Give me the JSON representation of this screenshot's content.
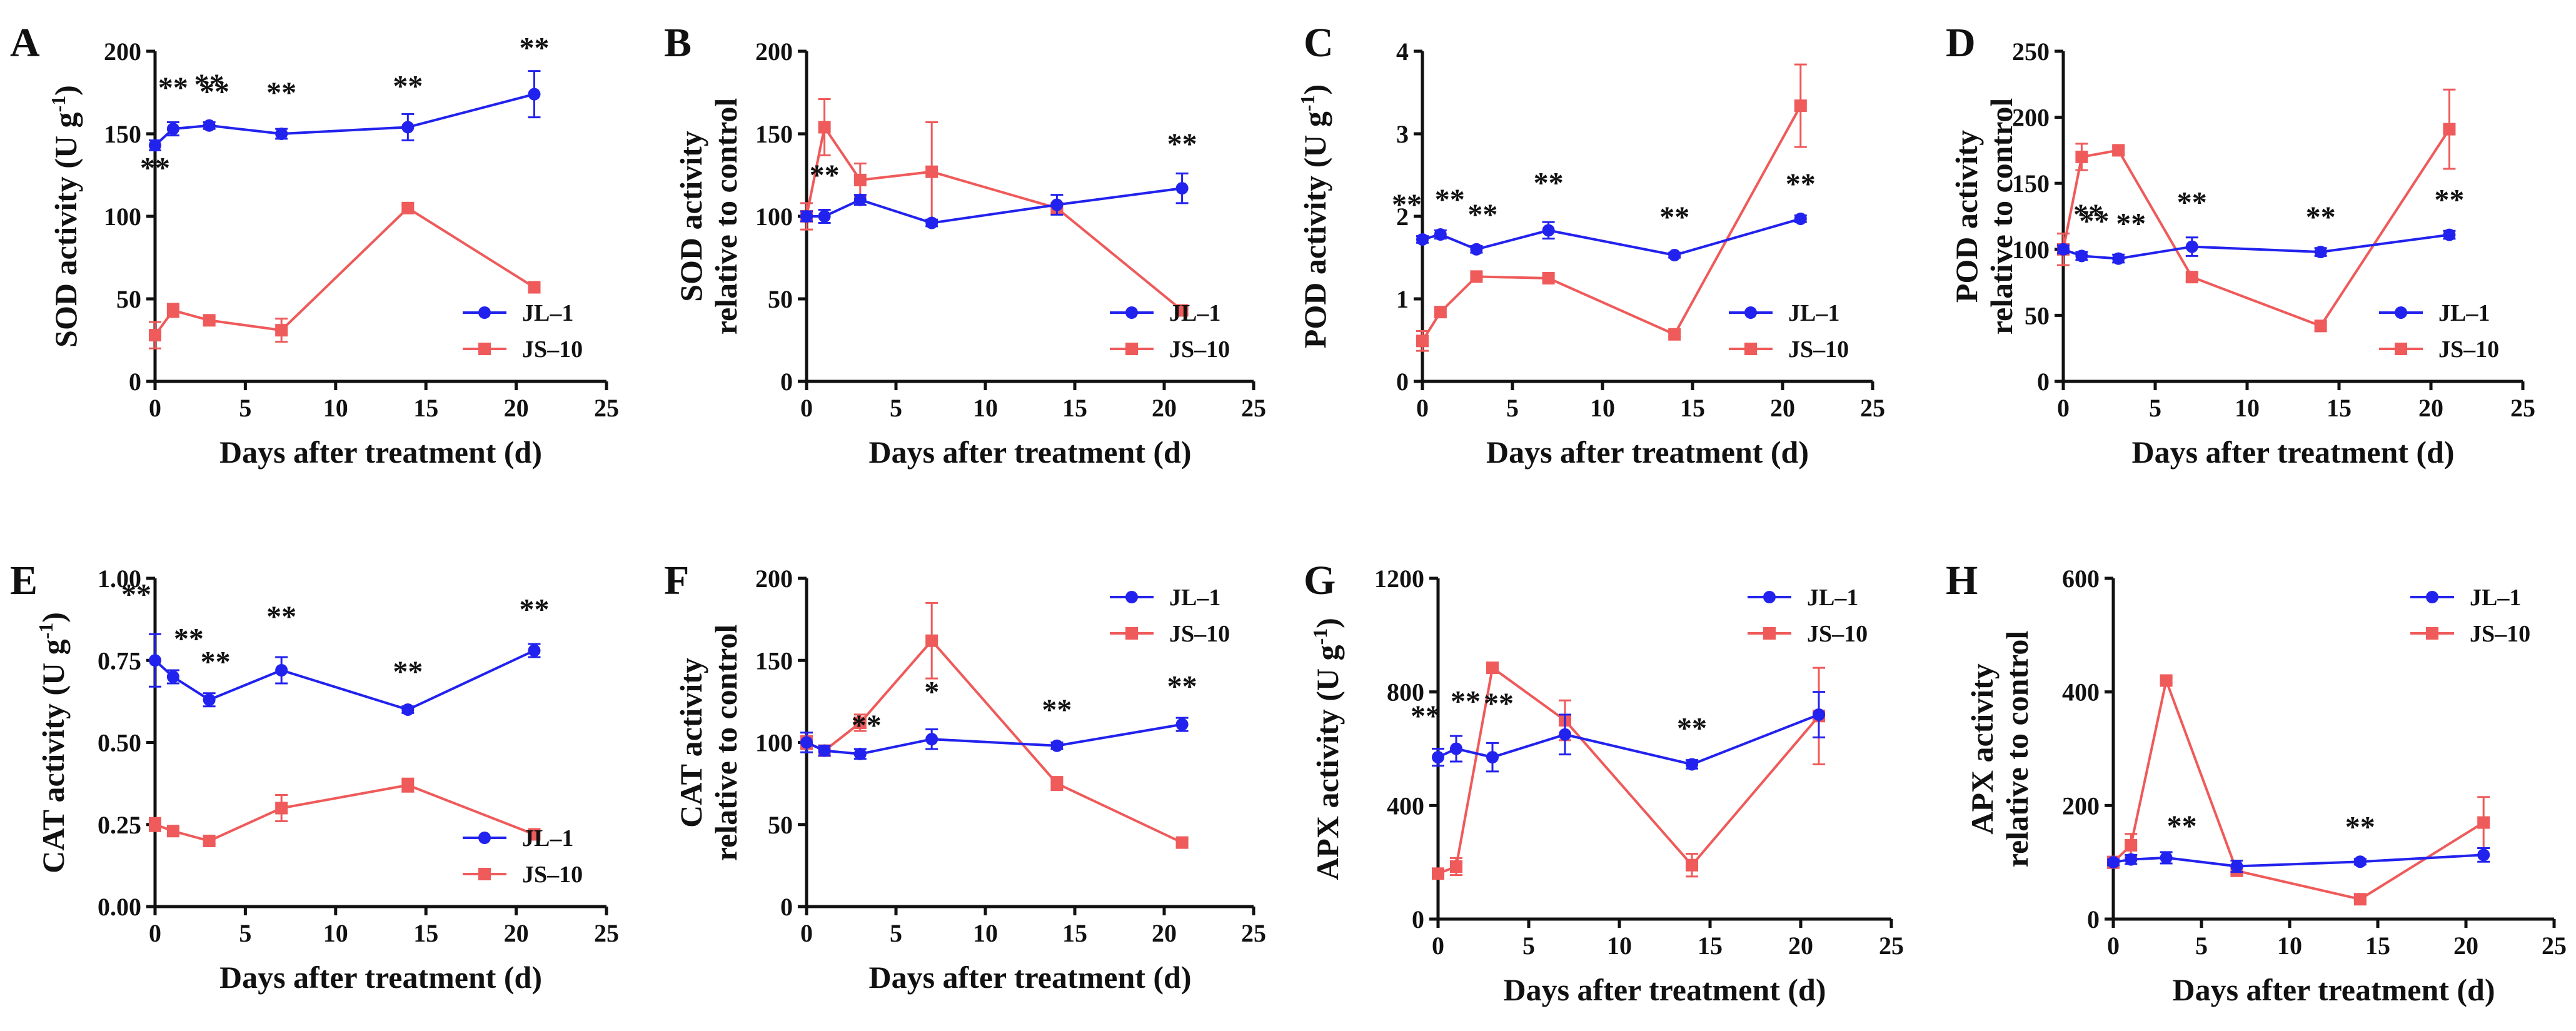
{
  "figure": {
    "series_names": [
      "JL–1",
      "JS–10"
    ],
    "colors": {
      "JL-1": "#2222ee",
      "JS-10": "#ef5a5a",
      "axis": "#111111"
    }
  },
  "chart_data": [
    {
      "panel": "A",
      "type": "line",
      "xlabel": "Days after treatment (d)",
      "ylabel": "SOD activity (U g⁻¹)",
      "xlim": [
        0,
        25
      ],
      "ylim": [
        0,
        200
      ],
      "xticks": [
        0,
        5,
        10,
        15,
        20,
        25
      ],
      "yticks": [
        0,
        50,
        100,
        150,
        200
      ],
      "xtick_labels": [
        "0",
        "5",
        "10",
        "15",
        "20",
        "25"
      ],
      "ytick_labels": [
        "0",
        "50",
        "100",
        "150",
        "200"
      ],
      "legend_position": "bottom-right",
      "series": [
        {
          "name": "JL–1",
          "x": [
            0,
            1,
            3,
            7,
            14,
            21
          ],
          "values": [
            143,
            153,
            155,
            150,
            154,
            174
          ],
          "errors": [
            3,
            4,
            2,
            3,
            8,
            14
          ]
        },
        {
          "name": "JS–10",
          "x": [
            0,
            1,
            3,
            7,
            14,
            21
          ],
          "values": [
            28,
            43,
            37,
            31,
            105,
            57
          ],
          "errors": [
            8,
            4,
            2,
            7,
            2,
            2
          ]
        }
      ],
      "annotations": [
        "**",
        "**",
        "**",
        "**",
        "**",
        "**"
      ]
    },
    {
      "panel": "B",
      "type": "line",
      "xlabel": "Days after treatment (d)",
      "ylabel": [
        "SOD activity",
        "relative to control"
      ],
      "xlim": [
        0,
        25
      ],
      "ylim": [
        0,
        200
      ],
      "xticks": [
        0,
        5,
        10,
        15,
        20,
        25
      ],
      "yticks": [
        0,
        50,
        100,
        150,
        200
      ],
      "xtick_labels": [
        "0",
        "5",
        "10",
        "15",
        "20",
        "25"
      ],
      "ytick_labels": [
        "0",
        "50",
        "100",
        "150",
        "200"
      ],
      "legend_position": "bottom-right",
      "series": [
        {
          "name": "JL–1",
          "x": [
            0,
            1,
            3,
            7,
            14,
            21
          ],
          "values": [
            100,
            100,
            110,
            96,
            107,
            117
          ],
          "errors": [
            3,
            4,
            3,
            2,
            6,
            9
          ]
        },
        {
          "name": "JS–10",
          "x": [
            0,
            1,
            3,
            7,
            14,
            21
          ],
          "values": [
            100,
            154,
            122,
            127,
            105,
            43
          ],
          "errors": [
            8,
            17,
            10,
            30,
            3,
            2
          ]
        }
      ],
      "annotations": [
        "**",
        "**"
      ]
    },
    {
      "panel": "C",
      "type": "line",
      "xlabel": "Days after treatment (d)",
      "ylabel": "POD activity (U g⁻¹)",
      "xlim": [
        0,
        25
      ],
      "ylim": [
        0,
        4
      ],
      "xticks": [
        0,
        5,
        10,
        15,
        20,
        25
      ],
      "yticks": [
        0,
        1,
        2,
        3,
        4
      ],
      "xtick_labels": [
        "0",
        "5",
        "10",
        "15",
        "20",
        "25"
      ],
      "ytick_labels": [
        "0",
        "1",
        "2",
        "3",
        "4"
      ],
      "legend_position": "bottom-right",
      "series": [
        {
          "name": "JL–1",
          "x": [
            0,
            1,
            3,
            7,
            14,
            21
          ],
          "values": [
            1.72,
            1.78,
            1.6,
            1.83,
            1.53,
            1.97
          ],
          "errors": [
            0.04,
            0.05,
            0.04,
            0.1,
            0.03,
            0.04
          ]
        },
        {
          "name": "JS–10",
          "x": [
            0,
            1,
            3,
            7,
            14,
            21
          ],
          "values": [
            0.49,
            0.84,
            1.27,
            1.25,
            0.57,
            3.34
          ],
          "errors": [
            0.12,
            0.05,
            0.04,
            0.03,
            0.03,
            0.5
          ]
        }
      ],
      "annotations": [
        "**",
        "**",
        "**",
        "**",
        "**",
        "**"
      ]
    },
    {
      "panel": "D",
      "type": "line",
      "xlabel": "Days after treatment (d)",
      "ylabel": [
        "POD activity",
        "relative to control"
      ],
      "xlim": [
        0,
        25
      ],
      "ylim": [
        0,
        250
      ],
      "xticks": [
        0,
        5,
        10,
        15,
        20,
        25
      ],
      "yticks": [
        0,
        50,
        100,
        150,
        200,
        250
      ],
      "xtick_labels": [
        "0",
        "5",
        "10",
        "15",
        "20",
        "25"
      ],
      "ytick_labels": [
        "0",
        "50",
        "100",
        "150",
        "200",
        "250"
      ],
      "legend_position": "bottom-right",
      "series": [
        {
          "name": "JL–1",
          "x": [
            0,
            1,
            3,
            7,
            14,
            21
          ],
          "values": [
            100,
            95,
            93,
            102,
            98,
            111
          ],
          "errors": [
            3,
            3,
            3,
            7,
            3,
            3
          ]
        },
        {
          "name": "JS–10",
          "x": [
            0,
            1,
            3,
            7,
            14,
            21
          ],
          "values": [
            100,
            170,
            175,
            79,
            42,
            191
          ],
          "errors": [
            12,
            10,
            3,
            3,
            4,
            30
          ]
        }
      ],
      "annotations": [
        "**",
        "**",
        "**",
        "**",
        "**"
      ]
    },
    {
      "panel": "E",
      "type": "line",
      "xlabel": "Days after treatment (d)",
      "ylabel": "CAT activity (U g⁻¹)",
      "xlim": [
        0,
        25
      ],
      "ylim": [
        0,
        1
      ],
      "xticks": [
        0,
        5,
        10,
        15,
        20,
        25
      ],
      "yticks": [
        0,
        0.25,
        0.5,
        0.75,
        1
      ],
      "xtick_labels": [
        "0",
        "5",
        "10",
        "15",
        "20",
        "25"
      ],
      "ytick_labels": [
        "0.00",
        "0.25",
        "0.50",
        "0.75",
        "1.00"
      ],
      "legend_position": "bottom-right",
      "series": [
        {
          "name": "JL–1",
          "x": [
            0,
            1,
            3,
            7,
            14,
            21
          ],
          "values": [
            0.75,
            0.7,
            0.63,
            0.72,
            0.6,
            0.78
          ],
          "errors": [
            0.08,
            0.02,
            0.02,
            0.04,
            0.01,
            0.02
          ]
        },
        {
          "name": "JS–10",
          "x": [
            0,
            1,
            3,
            7,
            14,
            21
          ],
          "values": [
            0.25,
            0.23,
            0.2,
            0.3,
            0.37,
            0.22
          ],
          "errors": [
            0.02,
            0.01,
            0.01,
            0.04,
            0.02,
            0.01
          ]
        }
      ],
      "annotations": [
        "**",
        "**",
        "**",
        "**",
        "**",
        "**"
      ]
    },
    {
      "panel": "F",
      "type": "line",
      "xlabel": "Days after treatment (d)",
      "ylabel": [
        "CAT activity",
        "relative to control"
      ],
      "xlim": [
        0,
        25
      ],
      "ylim": [
        0,
        200
      ],
      "xticks": [
        0,
        5,
        10,
        15,
        20,
        25
      ],
      "yticks": [
        0,
        50,
        100,
        150,
        200
      ],
      "xtick_labels": [
        "0",
        "5",
        "10",
        "15",
        "20",
        "25"
      ],
      "ytick_labels": [
        "0",
        "50",
        "100",
        "150",
        "200"
      ],
      "legend_position": "top-right",
      "series": [
        {
          "name": "JL–1",
          "x": [
            0,
            1,
            3,
            7,
            14,
            21
          ],
          "values": [
            100,
            95,
            93,
            102,
            98,
            111
          ],
          "errors": [
            6,
            3,
            3,
            6,
            2,
            4
          ]
        },
        {
          "name": "JS–10",
          "x": [
            0,
            1,
            3,
            7,
            14,
            21
          ],
          "values": [
            100,
            95,
            112,
            162,
            75,
            39
          ],
          "errors": [
            4,
            3,
            5,
            23,
            4,
            2
          ]
        }
      ],
      "annotations": [
        "**",
        "*",
        "**",
        "**"
      ]
    },
    {
      "panel": "G",
      "type": "line",
      "xlabel": "Days after treatment (d)",
      "ylabel": "APX activity (U g⁻¹)",
      "xlim": [
        0,
        25
      ],
      "ylim": [
        0,
        1200
      ],
      "xticks": [
        0,
        5,
        10,
        15,
        20,
        25
      ],
      "yticks": [
        0,
        400,
        800,
        1200
      ],
      "xtick_labels": [
        "0",
        "5",
        "10",
        "15",
        "20",
        "25"
      ],
      "ytick_labels": [
        "0",
        "400",
        "800",
        "1200"
      ],
      "legend_position": "top-right",
      "series": [
        {
          "name": "JL–1",
          "x": [
            0,
            1,
            3,
            7,
            14,
            21
          ],
          "values": [
            570,
            600,
            570,
            650,
            545,
            720
          ],
          "errors": [
            30,
            45,
            50,
            70,
            15,
            80
          ]
        },
        {
          "name": "JS–10",
          "x": [
            0,
            1,
            3,
            7,
            14,
            21
          ],
          "values": [
            160,
            185,
            885,
            700,
            190,
            715
          ],
          "errors": [
            10,
            30,
            10,
            70,
            40,
            170
          ]
        }
      ],
      "annotations": [
        "**",
        "**",
        "**",
        "**"
      ]
    },
    {
      "panel": "H",
      "type": "line",
      "xlabel": "Days after treatment (d)",
      "ylabel": [
        "APX activity",
        "relative to control"
      ],
      "xlim": [
        0,
        25
      ],
      "ylim": [
        0,
        600
      ],
      "xticks": [
        0,
        5,
        10,
        15,
        20,
        25
      ],
      "yticks": [
        0,
        200,
        400,
        600
      ],
      "xtick_labels": [
        "0",
        "5",
        "10",
        "15",
        "20",
        "25"
      ],
      "ytick_labels": [
        "0",
        "200",
        "400",
        "600"
      ],
      "legend_position": "top-right",
      "series": [
        {
          "name": "JL–1",
          "x": [
            0,
            1,
            3,
            7,
            14,
            21
          ],
          "values": [
            100,
            105,
            108,
            93,
            101,
            113
          ],
          "errors": [
            5,
            8,
            10,
            10,
            5,
            12
          ]
        },
        {
          "name": "JS–10",
          "x": [
            0,
            1,
            3,
            7,
            14,
            21
          ],
          "values": [
            100,
            130,
            420,
            85,
            35,
            170
          ],
          "errors": [
            10,
            20,
            5,
            5,
            3,
            45
          ]
        }
      ],
      "annotations": [
        "**",
        "**"
      ]
    }
  ]
}
